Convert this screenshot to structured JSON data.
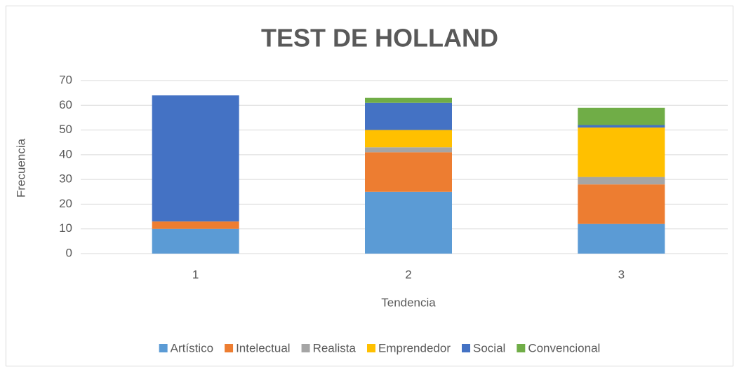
{
  "chart_data": {
    "type": "stacked_bar",
    "title": "TEST DE HOLLAND",
    "x_label": "Tendencia",
    "y_label": "Frecuencia",
    "categories": [
      "1",
      "2",
      "3"
    ],
    "series": [
      {
        "name": "Artístico",
        "color": "#5b9bd5",
        "values": [
          10,
          25,
          12
        ]
      },
      {
        "name": "Intelectual",
        "color": "#ed7d31",
        "values": [
          3,
          16,
          16
        ]
      },
      {
        "name": "Realista",
        "color": "#a5a5a5",
        "values": [
          0,
          2,
          3
        ]
      },
      {
        "name": "Emprendedor",
        "color": "#ffc000",
        "values": [
          0,
          7,
          20
        ]
      },
      {
        "name": "Social",
        "color": "#4472c4",
        "values": [
          51,
          11,
          1
        ]
      },
      {
        "name": "Convencional",
        "color": "#70ad47",
        "values": [
          0,
          2,
          7
        ]
      }
    ],
    "ylim": [
      0,
      70
    ],
    "yticks": [
      0,
      10,
      20,
      30,
      40,
      50,
      60,
      70
    ],
    "grid": true,
    "legend": "bottom"
  }
}
